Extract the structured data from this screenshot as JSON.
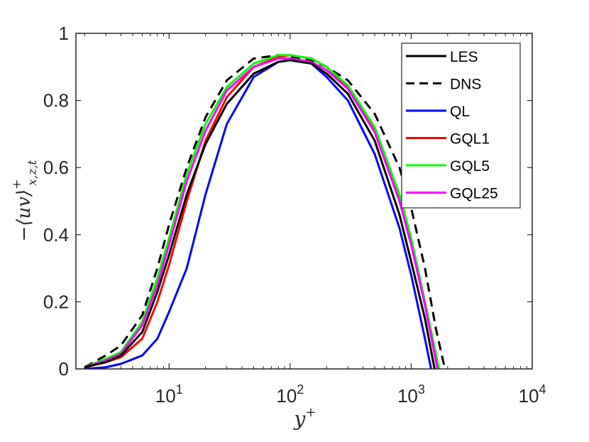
{
  "chart_data": {
    "type": "line",
    "xscale": "log",
    "xlim": [
      1.7,
      10000
    ],
    "ylim": [
      0,
      1
    ],
    "xlabel": "y",
    "xlabel_sup": "+",
    "ylabel_prefix": "−",
    "ylabel_core": "⟨uv⟩",
    "ylabel_sup": "+",
    "ylabel_sub": "x,z,t",
    "xticks": [
      {
        "value": 10,
        "base": "10",
        "exp": "1"
      },
      {
        "value": 100,
        "base": "10",
        "exp": "2"
      },
      {
        "value": 1000,
        "base": "10",
        "exp": "3"
      },
      {
        "value": 10000,
        "base": "10",
        "exp": "4"
      }
    ],
    "yticks": [
      {
        "value": 0,
        "label": "0"
      },
      {
        "value": 0.2,
        "label": "0.2"
      },
      {
        "value": 0.4,
        "label": "0.4"
      },
      {
        "value": 0.6,
        "label": "0.6"
      },
      {
        "value": 0.8,
        "label": "0.8"
      },
      {
        "value": 1,
        "label": "1"
      }
    ],
    "legend_position": "top-right",
    "series": [
      {
        "name": "LES",
        "color": "#000000",
        "dash": "solid",
        "x": [
          2,
          3,
          4,
          6,
          8,
          10,
          14,
          20,
          30,
          50,
          80,
          100,
          150,
          200,
          300,
          500,
          800,
          1000,
          1300,
          1560
        ],
        "y": [
          0.005,
          0.02,
          0.04,
          0.11,
          0.23,
          0.34,
          0.52,
          0.67,
          0.79,
          0.88,
          0.915,
          0.92,
          0.91,
          0.88,
          0.82,
          0.68,
          0.46,
          0.32,
          0.15,
          0.0
        ]
      },
      {
        "name": "DNS",
        "color": "#000000",
        "dash": "dashed",
        "x": [
          2,
          3,
          4,
          6,
          8,
          10,
          14,
          20,
          30,
          50,
          80,
          100,
          150,
          200,
          300,
          500,
          800,
          1000,
          1300,
          1600,
          1900
        ],
        "y": [
          0.005,
          0.04,
          0.07,
          0.16,
          0.3,
          0.43,
          0.6,
          0.75,
          0.86,
          0.925,
          0.935,
          0.93,
          0.92,
          0.9,
          0.86,
          0.76,
          0.6,
          0.48,
          0.3,
          0.12,
          0.0
        ]
      },
      {
        "name": "QL",
        "color": "#0000ff",
        "dash": "solid",
        "x": [
          2,
          3,
          4,
          6,
          8,
          10,
          14,
          20,
          30,
          50,
          80,
          100,
          150,
          200,
          300,
          500,
          800,
          1000,
          1300,
          1460
        ],
        "y": [
          0.0,
          0.005,
          0.015,
          0.04,
          0.09,
          0.17,
          0.3,
          0.52,
          0.73,
          0.87,
          0.915,
          0.92,
          0.91,
          0.87,
          0.8,
          0.64,
          0.42,
          0.28,
          0.09,
          0.0
        ]
      },
      {
        "name": "GQL1",
        "color": "#ff0000",
        "dash": "solid",
        "x": [
          2,
          3,
          4,
          6,
          8,
          10,
          14,
          20,
          30,
          50,
          80,
          100,
          150,
          200,
          300,
          500,
          800,
          1000,
          1300,
          1650
        ],
        "y": [
          0.005,
          0.02,
          0.035,
          0.09,
          0.2,
          0.31,
          0.5,
          0.68,
          0.81,
          0.9,
          0.93,
          0.935,
          0.925,
          0.9,
          0.84,
          0.71,
          0.51,
          0.38,
          0.2,
          0.0
        ]
      },
      {
        "name": "GQL5",
        "color": "#00ff00",
        "dash": "solid",
        "x": [
          2,
          3,
          4,
          6,
          8,
          10,
          14,
          20,
          30,
          50,
          80,
          100,
          150,
          200,
          300,
          500,
          800,
          1000,
          1300,
          1700
        ],
        "y": [
          0.005,
          0.03,
          0.05,
          0.14,
          0.27,
          0.39,
          0.58,
          0.73,
          0.84,
          0.91,
          0.935,
          0.935,
          0.925,
          0.9,
          0.845,
          0.72,
          0.52,
          0.39,
          0.2,
          0.0
        ]
      },
      {
        "name": "GQL25",
        "color": "#ff00ff",
        "dash": "solid",
        "x": [
          2,
          3,
          4,
          6,
          8,
          10,
          14,
          20,
          30,
          50,
          80,
          100,
          150,
          200,
          300,
          500,
          800,
          1000,
          1300,
          1650
        ],
        "y": [
          0.005,
          0.025,
          0.045,
          0.13,
          0.25,
          0.37,
          0.56,
          0.71,
          0.83,
          0.9,
          0.925,
          0.925,
          0.915,
          0.89,
          0.835,
          0.705,
          0.5,
          0.37,
          0.19,
          0.0
        ]
      }
    ]
  }
}
